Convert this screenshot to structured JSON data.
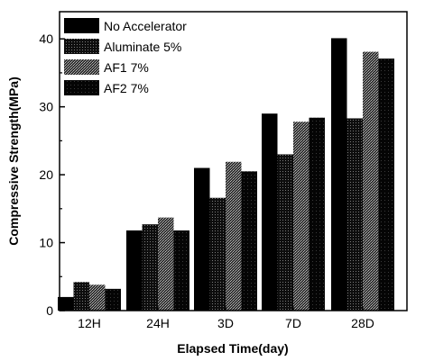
{
  "chart_data": {
    "type": "bar",
    "xlabel": "Elapsed Time(day)",
    "ylabel": "Compressive Strength(MPa)",
    "categories": [
      "12H",
      "24H",
      "3D",
      "7D",
      "28D"
    ],
    "ylim": [
      0,
      44
    ],
    "yticks": [
      "0",
      "10",
      "20",
      "30",
      "40"
    ],
    "legend_position": "top-left",
    "grid": false,
    "series": [
      {
        "name": "No Accelerator",
        "values": [
          2.0,
          11.8,
          21.0,
          29.0,
          40.1
        ],
        "color": "#000000",
        "pattern": "solid"
      },
      {
        "name": "Aluminate 5%",
        "values": [
          4.2,
          12.7,
          16.6,
          23.0,
          28.3
        ],
        "color": "#1a1a1a",
        "pattern": "dark-dots"
      },
      {
        "name": "AF1 7%",
        "values": [
          3.8,
          13.7,
          21.9,
          27.8,
          38.1
        ],
        "color": "#4a4a4a",
        "pattern": "medium-dots"
      },
      {
        "name": "AF2 7%",
        "values": [
          3.2,
          11.8,
          20.5,
          28.4,
          37.1
        ],
        "color": "#111111",
        "pattern": "near-solid"
      }
    ]
  }
}
